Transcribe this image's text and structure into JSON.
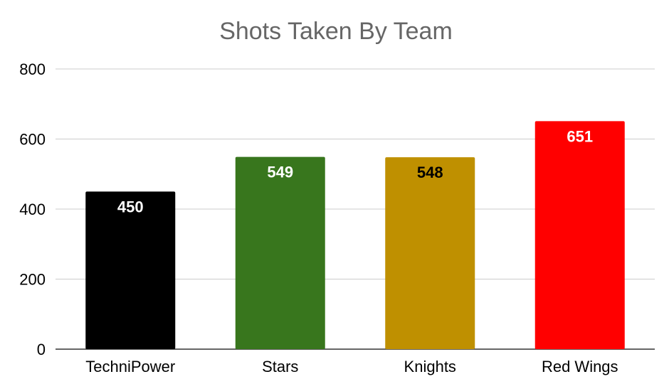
{
  "chart_data": {
    "type": "bar",
    "title": "Shots Taken By Team",
    "categories": [
      "TechniPower",
      "Stars",
      "Knights",
      "Red Wings"
    ],
    "values": [
      450,
      549,
      548,
      651
    ],
    "colors": [
      "#000000",
      "#38761d",
      "#bf9000",
      "#ff0000"
    ],
    "label_colors": [
      "#ffffff",
      "#ffffff",
      "#000000",
      "#ffffff"
    ],
    "ylim": [
      0,
      800
    ],
    "yticks": [
      "0",
      "200",
      "400",
      "600",
      "800"
    ],
    "grid": true
  }
}
